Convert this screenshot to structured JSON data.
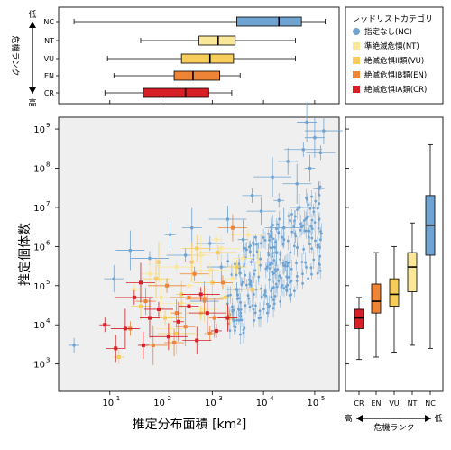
{
  "chart_data": [
    {
      "type": "box",
      "panel": "top",
      "orientation": "horizontal",
      "x_scale": "log",
      "x_range": [
        1,
        300000
      ],
      "y_axis_title": "危機ランク",
      "y_axis_top_label": "低",
      "y_axis_bottom_label": "高",
      "categories": [
        "NC",
        "NT",
        "VU",
        "EN",
        "CR"
      ],
      "series": [
        {
          "category": "NC",
          "whisker_low": 2,
          "q1": 3000,
          "median": 20000,
          "q3": 55000,
          "whisker_high": 160000
        },
        {
          "category": "NT",
          "whisker_low": 40,
          "q1": 550,
          "median": 1300,
          "q3": 2800,
          "whisker_high": 42000
        },
        {
          "category": "VU",
          "whisker_low": 9,
          "q1": 250,
          "median": 900,
          "q3": 2600,
          "whisker_high": 42000
        },
        {
          "category": "EN",
          "whisker_low": 12,
          "q1": 180,
          "median": 420,
          "q3": 1400,
          "whisker_high": 3500
        },
        {
          "category": "CR",
          "whisker_low": 8,
          "q1": 45,
          "median": 300,
          "q3": 850,
          "whisker_high": 2400
        }
      ]
    },
    {
      "type": "scatter",
      "panel": "main",
      "x_scale": "log",
      "y_scale": "log",
      "xlabel": "推定分布面積 [km²]",
      "ylabel": "推定個体数",
      "x_range": [
        1,
        300000
      ],
      "y_range": [
        200,
        2000000000
      ],
      "x_ticks": [
        {
          "base": "10",
          "exp": "1"
        },
        {
          "base": "10",
          "exp": "2"
        },
        {
          "base": "10",
          "exp": "3"
        },
        {
          "base": "10",
          "exp": "4"
        },
        {
          "base": "10",
          "exp": "5"
        }
      ],
      "y_ticks": [
        {
          "base": "10",
          "exp": "3"
        },
        {
          "base": "10",
          "exp": "4"
        },
        {
          "base": "10",
          "exp": "5"
        },
        {
          "base": "10",
          "exp": "6"
        },
        {
          "base": "10",
          "exp": "7"
        },
        {
          "base": "10",
          "exp": "8"
        },
        {
          "base": "10",
          "exp": "9"
        }
      ],
      "series": [
        {
          "category": "NC",
          "points": [
            [
              2,
              3000
            ],
            [
              12,
              150000
            ],
            [
              25,
              800000
            ],
            [
              60,
              500000
            ],
            [
              150,
              2000000
            ],
            [
              400,
              3000000
            ],
            [
              900,
              1200000
            ],
            [
              2000,
              5000000
            ],
            [
              4000,
              1500000
            ],
            [
              6000,
              20000000
            ],
            [
              9000,
              8000000
            ],
            [
              15000,
              60000000
            ],
            [
              20000,
              15000000
            ],
            [
              30000,
              150000000
            ],
            [
              45000,
              40000000
            ],
            [
              60000,
              300000000
            ],
            [
              80000,
              100000000
            ],
            [
              100000,
              600000000
            ],
            [
              130000,
              250000000
            ],
            [
              150000,
              900000000
            ],
            [
              8000,
              400000
            ],
            [
              3000,
              80000
            ],
            [
              1500,
              300000
            ],
            [
              25000,
              3000000
            ],
            [
              120000,
              30000000
            ],
            [
              50000,
              10000000
            ],
            [
              700,
              40000
            ],
            [
              300,
              600000
            ],
            [
              18000,
              700000
            ],
            [
              70000,
              1500000000
            ]
          ]
        },
        {
          "category": "NT",
          "points": [
            [
              30,
              80000
            ],
            [
              60,
              200000
            ],
            [
              100,
              50000
            ],
            [
              200,
              300000
            ],
            [
              350,
              100000
            ],
            [
              600,
              600000
            ],
            [
              900,
              250000
            ],
            [
              1500,
              900000
            ],
            [
              2500,
              150000
            ],
            [
              4000,
              500000
            ],
            [
              700,
              25000
            ],
            [
              250,
              35000
            ],
            [
              1200,
              1500000
            ],
            [
              8000,
              400000
            ],
            [
              150,
              8000
            ],
            [
              5000,
              2000000
            ]
          ]
        },
        {
          "category": "VU",
          "points": [
            [
              15,
              1500
            ],
            [
              40,
              30000
            ],
            [
              80,
              150000
            ],
            [
              120,
              15000
            ],
            [
              250,
              60000
            ],
            [
              400,
              400000
            ],
            [
              600,
              20000
            ],
            [
              1000,
              120000
            ],
            [
              1800,
              50000
            ],
            [
              3000,
              300000
            ],
            [
              500,
              900000
            ],
            [
              200,
              6000
            ],
            [
              2200,
              15000
            ],
            [
              6000,
              80000
            ],
            [
              90,
              400000
            ],
            [
              1300,
              700000
            ]
          ]
        },
        {
          "category": "EN",
          "points": [
            [
              25,
              8000
            ],
            [
              50,
              40000
            ],
            [
              70,
              3000
            ],
            [
              130,
              100000
            ],
            [
              200,
              20000
            ],
            [
              300,
              9000
            ],
            [
              450,
              200000
            ],
            [
              700,
              45000
            ],
            [
              1100,
              15000
            ],
            [
              1600,
              120000
            ],
            [
              2500,
              3000000
            ],
            [
              350,
              50000
            ],
            [
              900,
              6000
            ],
            [
              180,
              3500
            ]
          ]
        },
        {
          "category": "CR",
          "points": [
            [
              8,
              10000
            ],
            [
              13,
              2500
            ],
            [
              20,
              8000
            ],
            [
              30,
              50000
            ],
            [
              45,
              3000
            ],
            [
              60,
              15000
            ],
            [
              90,
              25000
            ],
            [
              140,
              5000
            ],
            [
              220,
              12000
            ],
            [
              350,
              30000
            ],
            [
              500,
              4000
            ],
            [
              800,
              20000
            ],
            [
              1200,
              7000
            ],
            [
              2000,
              15000
            ],
            [
              40,
              120000
            ],
            [
              600,
              60000
            ]
          ]
        }
      ]
    },
    {
      "type": "box",
      "panel": "right",
      "orientation": "vertical",
      "y_scale": "log",
      "y_range": [
        200,
        2000000000
      ],
      "xlabel": "危機ランク",
      "x_axis_left_label": "高",
      "x_axis_right_label": "低",
      "categories": [
        "CR",
        "EN",
        "VU",
        "NT",
        "NC"
      ],
      "series": [
        {
          "category": "CR",
          "whisker_low": 1300,
          "q1": 8000,
          "median": 15000,
          "q3": 25000,
          "whisker_high": 50000
        },
        {
          "category": "EN",
          "whisker_low": 1500,
          "q1": 20000,
          "median": 40000,
          "q3": 110000,
          "whisker_high": 700000
        },
        {
          "category": "VU",
          "whisker_low": 2000,
          "q1": 30000,
          "median": 60000,
          "q3": 150000,
          "whisker_high": 1000000
        },
        {
          "category": "NT",
          "whisker_low": 3000,
          "q1": 70000,
          "median": 300000,
          "q3": 700000,
          "whisker_high": 4000000
        },
        {
          "category": "NC",
          "whisker_low": 2500,
          "q1": 600000,
          "median": 3500000,
          "q3": 20000000,
          "whisker_high": 400000000
        }
      ]
    }
  ],
  "legend": {
    "title": "レッドリストカテゴリ",
    "entries": [
      {
        "key": "NC",
        "label": "指定なし(NC)",
        "color": "#6fa3d2",
        "shape": "circle"
      },
      {
        "key": "NT",
        "label": "準絶滅危惧(NT)",
        "color": "#fbe79a",
        "shape": "square"
      },
      {
        "key": "VU",
        "label": "絶滅危惧II類(VU)",
        "color": "#f6cc5b",
        "shape": "square"
      },
      {
        "key": "EN",
        "label": "絶滅危惧IB類(EN)",
        "color": "#ee8435",
        "shape": "square"
      },
      {
        "key": "CR",
        "label": "絶滅危惧IA類(CR)",
        "color": "#d61f26",
        "shape": "square"
      }
    ]
  },
  "colors": {
    "NC": "#6fa3d2",
    "NT": "#fbe79a",
    "VU": "#f6cc5b",
    "EN": "#ee8435",
    "CR": "#d61f26",
    "plot_bg": "#efefef"
  }
}
